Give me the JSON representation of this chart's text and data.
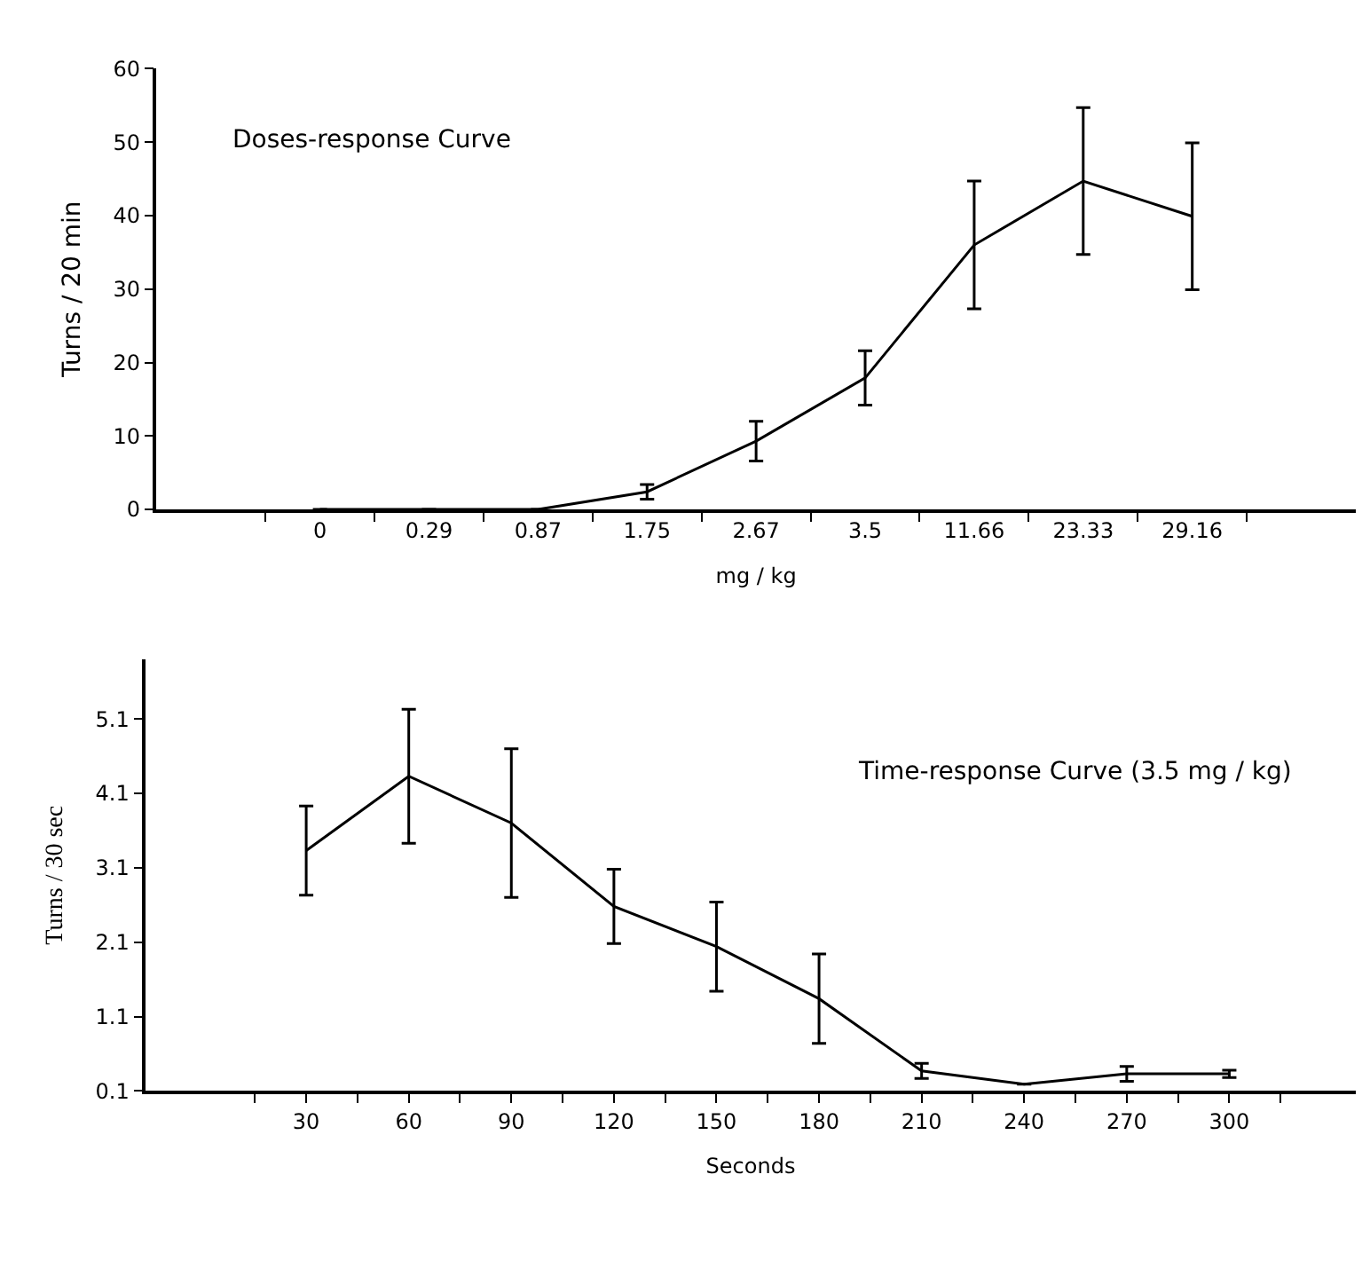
{
  "chart_data": [
    {
      "type": "line",
      "xlabel": "mg / kg",
      "ylabel": "Turns / 20 min",
      "annotations": [
        "Doses-response Curve"
      ],
      "categories": [
        "0",
        "0.29",
        "0.87",
        "1.75",
        "2.67",
        "3.5",
        "11.66",
        "23.33",
        "29.16"
      ],
      "series": [
        {
          "color": "#000000",
          "values": [
            0,
            0,
            0,
            2.4,
            9.3,
            17.9,
            36,
            44.7,
            39.9
          ],
          "errors": [
            null,
            null,
            null,
            1,
            2.7,
            3.7,
            8.7,
            10,
            10
          ]
        }
      ],
      "ylim": [
        0,
        60
      ],
      "yticks": [
        0,
        10,
        20,
        30,
        40,
        50,
        60
      ],
      "marker": "none",
      "line_style": "solid"
    },
    {
      "type": "line",
      "xlabel": "Seconds",
      "ylabel": "Turns / 30 sec",
      "annotations": [
        "Time-response Curve (3.5 mg / kg)"
      ],
      "x": [
        30,
        60,
        90,
        120,
        150,
        180,
        210,
        240,
        270,
        300
      ],
      "series": [
        {
          "color": "#000000",
          "values": [
            3.33,
            4.33,
            3.7,
            2.58,
            2.04,
            1.34,
            0.37,
            0.19,
            0.33,
            0.33
          ],
          "errors": [
            0.6,
            0.9,
            1.0,
            0.5,
            0.6,
            0.6,
            0.1,
            null,
            0.1,
            0.05
          ]
        }
      ],
      "xlim": [
        -17,
        337
      ],
      "xticks": [
        {
          "value": 15,
          "label": null
        },
        30,
        {
          "value": 45,
          "label": null
        },
        60,
        {
          "value": 75,
          "label": null
        },
        90,
        {
          "value": 105,
          "label": null
        },
        120,
        {
          "value": 135,
          "label": null
        },
        150,
        {
          "value": 165,
          "label": null
        },
        180,
        {
          "value": 195,
          "label": null
        },
        210,
        {
          "value": 225,
          "label": null
        },
        240,
        {
          "value": 255,
          "label": null
        },
        270,
        {
          "value": 285,
          "label": null
        },
        300,
        {
          "value": 315,
          "label": null
        }
      ],
      "ylim": [
        0.1,
        5.9
      ],
      "yticks": [
        0.1,
        1.1,
        2.1,
        3.1,
        4.1,
        5.1
      ],
      "marker": "none",
      "line_style": "solid"
    }
  ]
}
